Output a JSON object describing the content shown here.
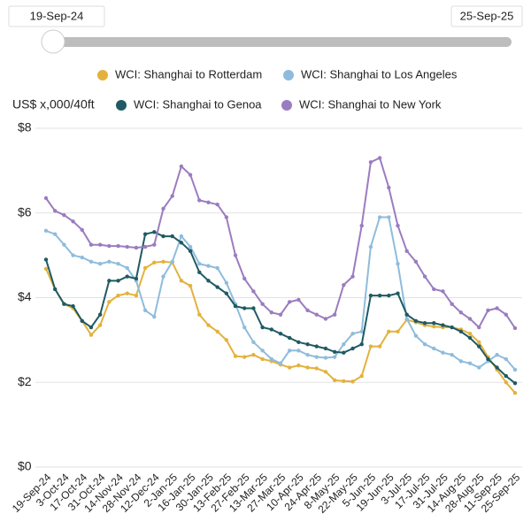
{
  "chart_data": {
    "type": "line",
    "ylabel": "US$ x,000/40ft",
    "categories": [
      "19-Sep-24",
      null,
      "3-Oct-24",
      null,
      "17-Oct-24",
      null,
      "31-Oct-24",
      null,
      "14-Nov-24",
      null,
      "28-Nov-24",
      null,
      "12-Dec-24",
      null,
      "2-Jan-25",
      null,
      "16-Jan-25",
      null,
      "30-Jan-25",
      null,
      "13-Feb-25",
      null,
      "27-Feb-25",
      null,
      "13-Mar-25",
      null,
      "27-Mar-25",
      null,
      "10-Apr-25",
      null,
      "24-Apr-25",
      null,
      "8-May-25",
      null,
      "22-May-25",
      null,
      "5-Jun-25",
      null,
      "19-Jun-25",
      null,
      "3-Jul-25",
      null,
      "17-Jul-25",
      null,
      "31-Jul-25",
      null,
      "14-Aug-25",
      null,
      "28-Aug-25",
      null,
      "11-Sep-25",
      null,
      "25-Sep-25"
    ],
    "series": [
      {
        "name": "WCI: Shanghai to Rotterdam",
        "color": "#e3b23c",
        "values": [
          4.68,
          4.2,
          3.85,
          3.75,
          3.45,
          3.12,
          3.35,
          3.9,
          4.05,
          4.1,
          4.05,
          4.7,
          4.83,
          4.85,
          4.83,
          4.4,
          4.28,
          3.6,
          3.35,
          3.2,
          3.0,
          2.62,
          2.6,
          2.65,
          2.55,
          2.5,
          2.42,
          2.35,
          2.4,
          2.35,
          2.33,
          2.25,
          2.05,
          2.03,
          2.02,
          2.15,
          2.85,
          2.85,
          3.2,
          3.2,
          3.48,
          3.42,
          3.35,
          3.32,
          3.3,
          3.3,
          3.25,
          3.15,
          2.95,
          2.6,
          2.3,
          2.0,
          1.75
        ]
      },
      {
        "name": "WCI: Shanghai to Los Angeles",
        "color": "#8fbcdc",
        "values": [
          5.58,
          5.5,
          5.25,
          5.0,
          4.95,
          4.85,
          4.8,
          4.85,
          4.8,
          4.7,
          4.4,
          3.7,
          3.55,
          4.5,
          4.85,
          5.45,
          5.2,
          4.8,
          4.75,
          4.7,
          4.35,
          3.85,
          3.3,
          2.95,
          2.75,
          2.55,
          2.45,
          2.75,
          2.75,
          2.65,
          2.6,
          2.58,
          2.6,
          2.9,
          3.15,
          3.2,
          5.2,
          5.9,
          5.9,
          4.8,
          3.5,
          3.1,
          2.9,
          2.8,
          2.7,
          2.65,
          2.5,
          2.45,
          2.35,
          2.5,
          2.65,
          2.55,
          2.3
        ]
      },
      {
        "name": "WCI: Shanghai to Genoa",
        "color": "#1f5a63",
        "values": [
          4.9,
          4.2,
          3.85,
          3.8,
          3.45,
          3.3,
          3.6,
          4.4,
          4.4,
          4.5,
          4.45,
          5.5,
          5.55,
          5.45,
          5.45,
          5.3,
          5.1,
          4.6,
          4.4,
          4.25,
          4.1,
          3.8,
          3.75,
          3.75,
          3.3,
          3.25,
          3.15,
          3.05,
          2.95,
          2.9,
          2.85,
          2.8,
          2.72,
          2.7,
          2.8,
          2.9,
          4.05,
          4.05,
          4.05,
          4.1,
          3.6,
          3.45,
          3.4,
          3.4,
          3.35,
          3.3,
          3.2,
          3.05,
          2.85,
          2.55,
          2.35,
          2.15,
          1.98
        ]
      },
      {
        "name": "WCI: Shanghai to New York",
        "color": "#9b7cc0",
        "values": [
          6.35,
          6.05,
          5.95,
          5.8,
          5.6,
          5.25,
          5.25,
          5.22,
          5.22,
          5.2,
          5.18,
          5.2,
          5.25,
          6.1,
          6.4,
          7.1,
          6.9,
          6.3,
          6.25,
          6.2,
          5.9,
          5.0,
          4.45,
          4.15,
          3.85,
          3.65,
          3.6,
          3.9,
          3.95,
          3.7,
          3.6,
          3.5,
          3.6,
          4.3,
          4.5,
          5.7,
          7.2,
          7.3,
          6.6,
          5.7,
          5.1,
          4.85,
          4.5,
          4.2,
          4.15,
          3.85,
          3.65,
          3.5,
          3.3,
          3.7,
          3.75,
          3.6,
          3.28
        ]
      }
    ],
    "ylim": [
      0,
      8
    ],
    "yticks": [
      {
        "value": 0,
        "label": "$0"
      },
      {
        "value": 2,
        "label": "$2"
      },
      {
        "value": 4,
        "label": "$4"
      },
      {
        "value": 6,
        "label": "$6"
      },
      {
        "value": 8,
        "label": "$8"
      }
    ],
    "grid": true
  }
}
